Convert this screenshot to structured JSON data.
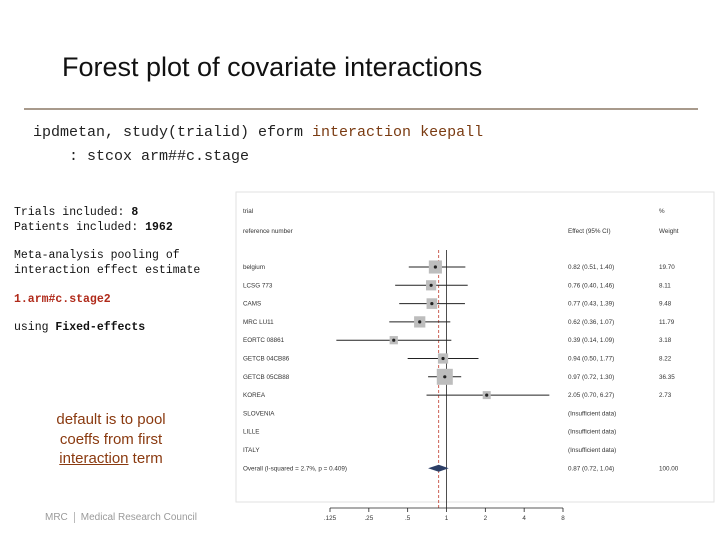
{
  "slide": {
    "title": "Forest plot of covariate interactions",
    "code_line1_cmd": "ipdmetan, study(trialid) eform ",
    "code_line1_kw": "interaction keepall",
    "code_line2": "    : stcox arm##c.stage",
    "trials_label": "Trials included: ",
    "trials_value": "8",
    "patients_label": "Patients included: ",
    "patients_value": "1962",
    "meta_line1": "Meta-analysis pooling of",
    "meta_line2": "interaction effect estimate",
    "term": "1.arm#c.stage2",
    "using_label": "using ",
    "using_value": "Fixed-effects",
    "note_line1": "default is to pool",
    "note_line2": "coeffs from first",
    "note_underlined": "interaction",
    "note_tail": " term",
    "footer_logo": "MRC",
    "footer_org": "Medical Research Council"
  },
  "chart_data": {
    "type": "forest",
    "header": {
      "col1_line1": "trial",
      "col1_line2": "reference number",
      "effect_header": "Effect (95% CI)",
      "weight_header_line1": "%",
      "weight_header_line2": "Weight"
    },
    "xscale": "log",
    "xlim": [
      0.125,
      8
    ],
    "xticks": [
      ".125",
      ".25",
      ".5",
      "1",
      "2",
      "4",
      "8"
    ],
    "xtick_values": [
      0.125,
      0.25,
      0.5,
      1,
      2,
      4,
      8
    ],
    "null_line": 1,
    "overall_effect": 0.87,
    "rows": [
      {
        "label": "belgium",
        "est": 0.82,
        "lo": 0.51,
        "hi": 1.4,
        "ci": "0.82 (0.51, 1.40)",
        "weight": "19.70",
        "w": 19.7
      },
      {
        "label": "LCSG 773",
        "est": 0.76,
        "lo": 0.4,
        "hi": 1.46,
        "ci": "0.76 (0.40, 1.46)",
        "weight": "8.11",
        "w": 8.11
      },
      {
        "label": "CAMS",
        "est": 0.77,
        "lo": 0.43,
        "hi": 1.39,
        "ci": "0.77 (0.43, 1.39)",
        "weight": "9.48",
        "w": 9.48
      },
      {
        "label": "MRC LU11",
        "est": 0.62,
        "lo": 0.36,
        "hi": 1.07,
        "ci": "0.62 (0.36, 1.07)",
        "weight": "11.79",
        "w": 11.79
      },
      {
        "label": "EORTC 08861",
        "est": 0.39,
        "lo": 0.14,
        "hi": 1.09,
        "ci": "0.39 (0.14, 1.09)",
        "weight": "3.18",
        "w": 3.18
      },
      {
        "label": "GETCB 04CB86",
        "est": 0.94,
        "lo": 0.5,
        "hi": 1.77,
        "ci": "0.94 (0.50, 1.77)",
        "weight": "8.22",
        "w": 8.22
      },
      {
        "label": "GETCB 05CB88",
        "est": 0.97,
        "lo": 0.72,
        "hi": 1.3,
        "ci": "0.97 (0.72, 1.30)",
        "weight": "36.35",
        "w": 36.35
      },
      {
        "label": "KOREA",
        "est": 2.05,
        "lo": 0.7,
        "hi": 6.27,
        "ci": "2.05 (0.70, 6.27)",
        "weight": "2.73",
        "w": 2.73
      },
      {
        "label": "SLOVENIA",
        "est": null,
        "ci": "(Insufficient data)",
        "weight": ""
      },
      {
        "label": "LILLE",
        "est": null,
        "ci": "(Insufficient data)",
        "weight": ""
      },
      {
        "label": "ITALY",
        "est": null,
        "ci": "(Insufficient data)",
        "weight": ""
      }
    ],
    "overall": {
      "label": "Overall (I-squared = 2.7%, p = 0.409)",
      "est": 0.87,
      "lo": 0.72,
      "hi": 1.04,
      "ci": "0.87 (0.72, 1.04)",
      "weight": "100.00"
    }
  }
}
